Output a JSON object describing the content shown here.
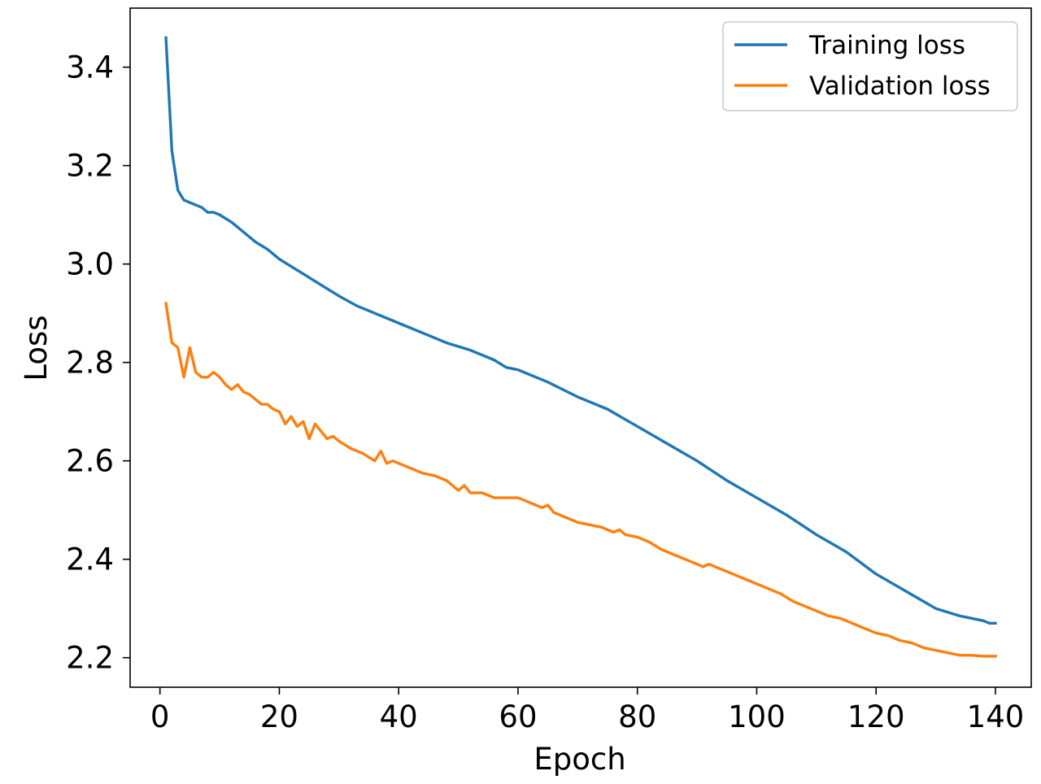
{
  "chart_data": {
    "type": "line",
    "title": "",
    "xlabel": "Epoch",
    "ylabel": "Loss",
    "xlim": [
      -5,
      146
    ],
    "ylim": [
      2.14,
      3.52
    ],
    "xticks": [
      0,
      20,
      40,
      60,
      80,
      100,
      120,
      140
    ],
    "yticks": [
      2.2,
      2.4,
      2.6,
      2.8,
      3.0,
      3.2,
      3.4
    ],
    "xtick_labels": [
      "0",
      "20",
      "40",
      "60",
      "80",
      "100",
      "120",
      "140"
    ],
    "ytick_labels": [
      "2.2",
      "2.4",
      "2.6",
      "2.8",
      "3.0",
      "3.2",
      "3.4"
    ],
    "grid": false,
    "legend_position": "top-right",
    "series": [
      {
        "name": "Training loss",
        "color": "#1f77b4",
        "x": [
          1,
          2,
          3,
          4,
          5,
          6,
          7,
          8,
          9,
          10,
          12,
          14,
          16,
          18,
          20,
          22,
          24,
          26,
          28,
          30,
          33,
          36,
          40,
          44,
          48,
          52,
          56,
          58,
          60,
          62,
          65,
          70,
          75,
          80,
          85,
          90,
          95,
          100,
          105,
          110,
          115,
          120,
          125,
          130,
          134,
          136,
          138,
          139,
          140
        ],
        "y": [
          3.46,
          3.23,
          3.15,
          3.13,
          3.125,
          3.12,
          3.115,
          3.105,
          3.105,
          3.1,
          3.085,
          3.065,
          3.045,
          3.03,
          3.01,
          2.995,
          2.98,
          2.965,
          2.95,
          2.935,
          2.915,
          2.9,
          2.88,
          2.86,
          2.84,
          2.825,
          2.805,
          2.79,
          2.785,
          2.775,
          2.76,
          2.73,
          2.705,
          2.67,
          2.635,
          2.6,
          2.56,
          2.525,
          2.49,
          2.45,
          2.415,
          2.37,
          2.335,
          2.3,
          2.285,
          2.28,
          2.275,
          2.27,
          2.27
        ]
      },
      {
        "name": "Validation loss",
        "color": "#ff7f0e",
        "x": [
          1,
          2,
          3,
          4,
          5,
          6,
          7,
          8,
          9,
          10,
          11,
          12,
          13,
          14,
          15,
          16,
          17,
          18,
          19,
          20,
          21,
          22,
          23,
          24,
          25,
          26,
          27,
          28,
          29,
          30,
          32,
          34,
          36,
          37,
          38,
          39,
          40,
          42,
          44,
          46,
          48,
          50,
          51,
          52,
          54,
          56,
          58,
          60,
          62,
          64,
          65,
          66,
          68,
          70,
          72,
          74,
          76,
          77,
          78,
          80,
          82,
          84,
          86,
          88,
          90,
          91,
          92,
          94,
          96,
          97,
          98,
          100,
          102,
          104,
          106,
          108,
          110,
          112,
          114,
          116,
          118,
          120,
          122,
          124,
          126,
          128,
          130,
          132,
          134,
          136,
          138,
          140
        ],
        "y": [
          2.92,
          2.84,
          2.83,
          2.77,
          2.83,
          2.78,
          2.77,
          2.77,
          2.78,
          2.77,
          2.755,
          2.745,
          2.755,
          2.74,
          2.735,
          2.725,
          2.715,
          2.715,
          2.705,
          2.7,
          2.675,
          2.69,
          2.67,
          2.68,
          2.645,
          2.675,
          2.66,
          2.645,
          2.65,
          2.64,
          2.625,
          2.615,
          2.6,
          2.62,
          2.595,
          2.6,
          2.595,
          2.585,
          2.575,
          2.57,
          2.56,
          2.54,
          2.55,
          2.535,
          2.535,
          2.525,
          2.525,
          2.525,
          2.515,
          2.505,
          2.51,
          2.495,
          2.485,
          2.475,
          2.47,
          2.465,
          2.455,
          2.46,
          2.45,
          2.445,
          2.435,
          2.42,
          2.41,
          2.4,
          2.39,
          2.385,
          2.39,
          2.38,
          2.37,
          2.365,
          2.36,
          2.35,
          2.34,
          2.33,
          2.315,
          2.305,
          2.295,
          2.285,
          2.28,
          2.27,
          2.26,
          2.25,
          2.245,
          2.235,
          2.23,
          2.22,
          2.215,
          2.21,
          2.205,
          2.205,
          2.203,
          2.203
        ]
      }
    ]
  }
}
